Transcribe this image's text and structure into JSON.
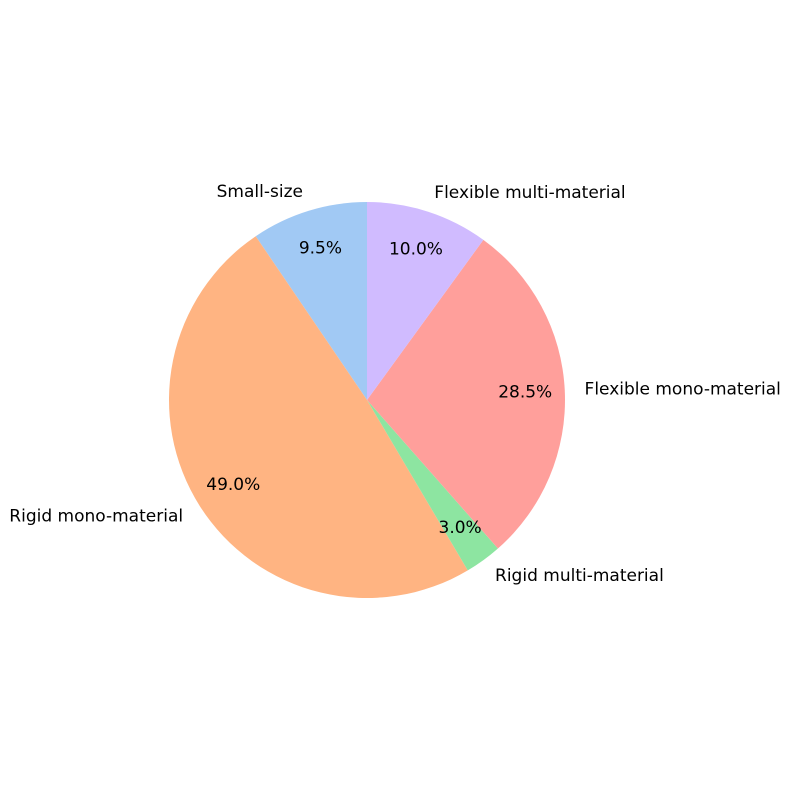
{
  "chart_data": {
    "type": "pie",
    "title": "",
    "categories": [
      "Small-size",
      "Rigid mono-material",
      "Rigid multi-material",
      "Flexible mono-material",
      "Flexible multi-material"
    ],
    "values": [
      9.5,
      49.0,
      3.0,
      28.5,
      10.0
    ],
    "value_labels": [
      "9.5%",
      "49.0%",
      "3.0%",
      "28.5%",
      "10.0%"
    ],
    "colors": [
      "#a1c9f4",
      "#ffb482",
      "#8de5a1",
      "#ff9f9b",
      "#d0bbff"
    ],
    "start_angle_deg": 90,
    "direction": "counterclockwise",
    "legend": "none"
  }
}
